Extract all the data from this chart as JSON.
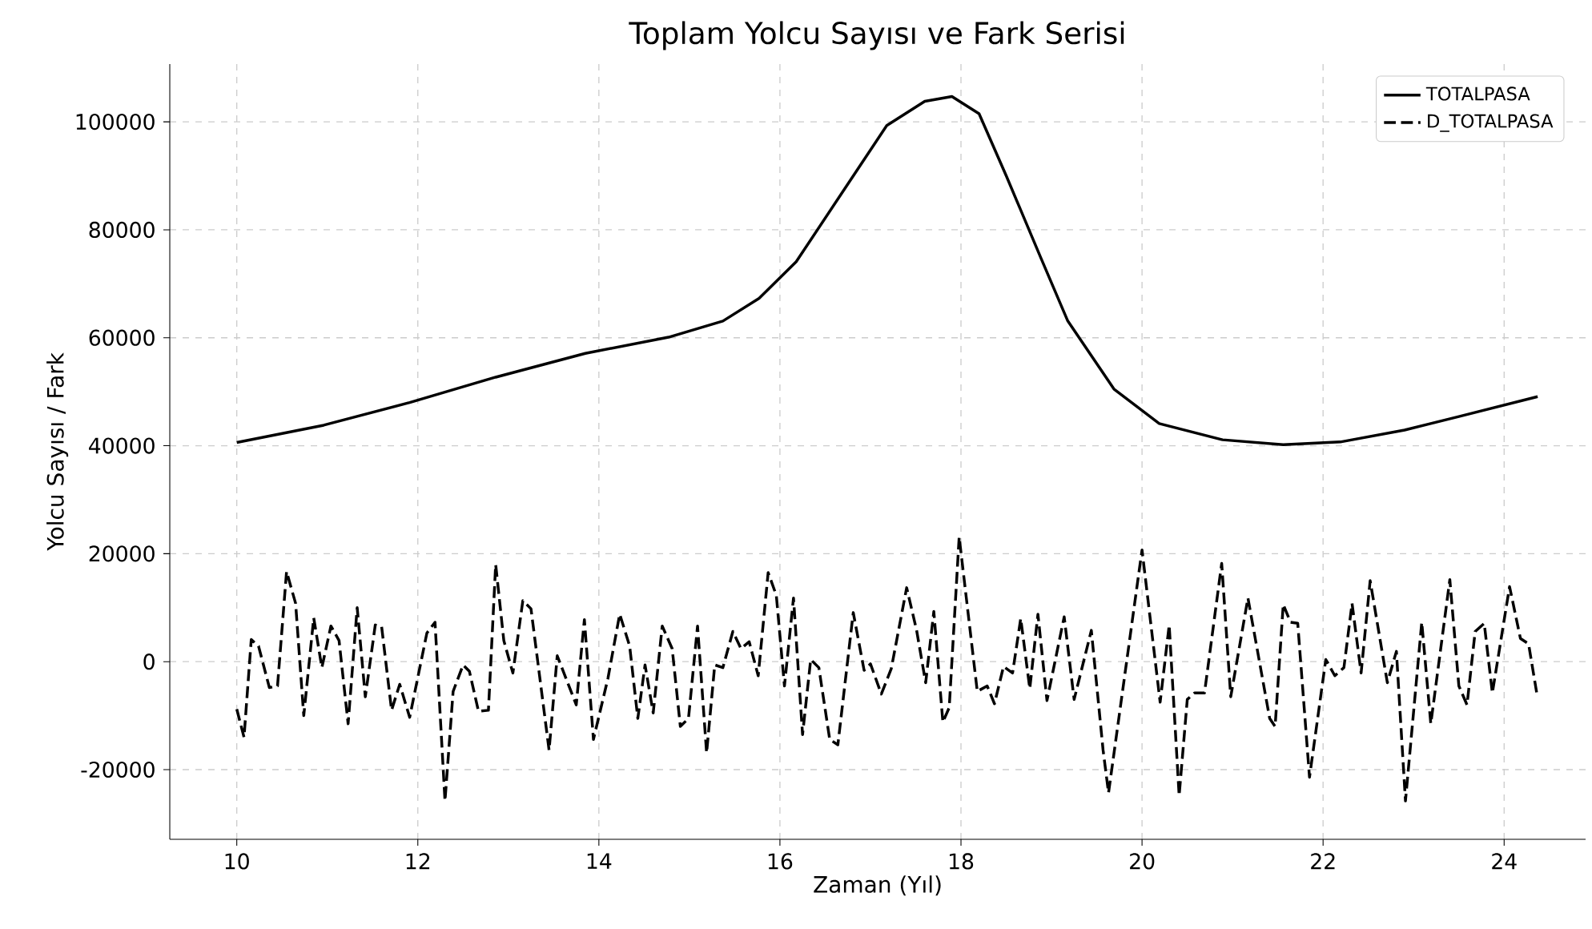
{
  "chart_data": {
    "type": "line",
    "title": "Toplam Yolcu Sayısı ve Fark Serisi",
    "xlabel": "Zaman (Yıl)",
    "ylabel": "Yolcu Sayısı / Fark",
    "xlim": [
      9.26,
      24.9
    ],
    "ylim": [
      -32900,
      110700
    ],
    "xticks": [
      10,
      12,
      14,
      16,
      18,
      20,
      22,
      24
    ],
    "yticks": [
      -20000,
      0,
      20000,
      40000,
      60000,
      80000,
      100000
    ],
    "grid": true,
    "legend": "top right",
    "series": [
      {
        "name": "TOTALPASA",
        "color": "#000000",
        "line_style": "solid",
        "x": [
          10.0,
          10.96,
          11.91,
          12.86,
          13.85,
          14.77,
          15.37,
          15.77,
          16.18,
          16.68,
          17.18,
          17.6,
          17.9,
          18.2,
          18.5,
          18.88,
          19.18,
          19.69,
          20.19,
          20.89,
          21.56,
          22.19,
          22.9,
          23.5,
          24.37
        ],
        "values": [
          40600,
          43800,
          48000,
          52700,
          57100,
          60100,
          63100,
          67300,
          74100,
          86700,
          99300,
          103800,
          104700,
          101500,
          90000,
          74900,
          63100,
          50500,
          44100,
          41100,
          40200,
          40700,
          42900,
          45400,
          49100
        ]
      },
      {
        "name": "D_TOTALPASA",
        "color": "#000000",
        "line_style": "dashed",
        "x": [
          10.0,
          10.08,
          10.16,
          10.24,
          10.36,
          10.45,
          10.55,
          10.65,
          10.74,
          10.85,
          10.94,
          11.04,
          11.13,
          11.23,
          11.33,
          11.42,
          11.53,
          11.6,
          11.71,
          11.8,
          11.91,
          12.1,
          12.19,
          12.3,
          12.39,
          12.5,
          12.57,
          12.67,
          12.78,
          12.86,
          12.95,
          13.05,
          13.16,
          13.25,
          13.45,
          13.54,
          13.66,
          13.75,
          13.84,
          13.94,
          14.1,
          14.23,
          14.34,
          14.43,
          14.51,
          14.6,
          14.7,
          14.81,
          14.9,
          14.99,
          15.09,
          15.19,
          15.28,
          15.37,
          15.48,
          15.57,
          15.66,
          15.76,
          15.87,
          15.96,
          16.05,
          16.15,
          16.25,
          16.34,
          16.43,
          16.55,
          16.64,
          16.81,
          16.93,
          17.0,
          17.12,
          17.23,
          17.4,
          17.51,
          17.61,
          17.7,
          17.8,
          17.87,
          17.98,
          18.18,
          18.29,
          18.37,
          18.47,
          18.57,
          18.66,
          18.76,
          18.85,
          18.95,
          19.14,
          19.25,
          19.44,
          19.57,
          19.63,
          20.0,
          20.2,
          20.3,
          20.41,
          20.5,
          20.58,
          20.69,
          20.88,
          20.98,
          21.17,
          21.41,
          21.47,
          21.56,
          21.64,
          21.72,
          21.85,
          22.03,
          22.13,
          22.23,
          22.32,
          22.42,
          22.52,
          22.71,
          22.81,
          22.91,
          23.09,
          23.19,
          23.4,
          23.5,
          23.59,
          23.68,
          23.78,
          23.87,
          24.06,
          24.18,
          24.27,
          24.36
        ],
        "values": [
          -8800,
          -14000,
          4100,
          2900,
          -4800,
          -4500,
          16700,
          10800,
          -10000,
          8100,
          -1100,
          6600,
          3900,
          -11500,
          10000,
          -6500,
          6800,
          6500,
          -9000,
          -4200,
          -10300,
          5300,
          7300,
          -25800,
          -5500,
          -600,
          -1800,
          -9200,
          -9000,
          18000,
          3900,
          -2100,
          11300,
          9800,
          -16400,
          1100,
          -4100,
          -8000,
          7800,
          -14400,
          -3100,
          8800,
          2900,
          -10500,
          -600,
          -9500,
          6600,
          2400,
          -12000,
          -10500,
          6600,
          -16900,
          -600,
          -1100,
          5600,
          2400,
          3700,
          -2600,
          16500,
          12300,
          -4500,
          11800,
          -13500,
          400,
          -1100,
          -14400,
          -15400,
          9100,
          -1600,
          -400,
          -6000,
          -1300,
          13700,
          5800,
          -3900,
          9300,
          -11200,
          -8500,
          23100,
          -5500,
          -4500,
          -7800,
          -900,
          -2100,
          8000,
          -5000,
          8800,
          -7200,
          8300,
          -7000,
          5800,
          -16400,
          -24300,
          20700,
          -7500,
          6800,
          -24800,
          -7000,
          -5800,
          -5800,
          18200,
          -6500,
          11800,
          -10500,
          -12000,
          10600,
          7300,
          7100,
          -21400,
          400,
          -2600,
          -1100,
          10800,
          -2100,
          15000,
          -3900,
          1900,
          -25800,
          7300,
          -11500,
          15200,
          -4500,
          -8000,
          5600,
          7100,
          -5800,
          13900,
          4300,
          3300,
          -5800
        ]
      }
    ]
  }
}
